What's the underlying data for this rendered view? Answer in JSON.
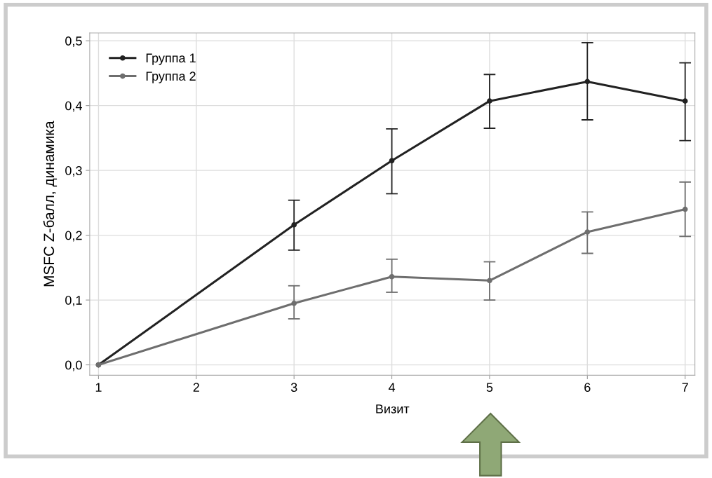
{
  "chart_data": {
    "type": "line",
    "xlabel": "Визит",
    "ylabel": "MSFC Z-балл, динамика",
    "x": [
      1,
      3,
      4,
      5,
      6,
      7
    ],
    "series": [
      {
        "name": "Группа 1",
        "color": "#222222",
        "values": [
          0.0,
          0.216,
          0.315,
          0.407,
          0.437,
          0.407
        ],
        "errors": [
          null,
          [
            0.177,
            0.254
          ],
          [
            0.264,
            0.364
          ],
          [
            0.365,
            0.448
          ],
          [
            0.378,
            0.497
          ],
          [
            0.346,
            0.466
          ]
        ]
      },
      {
        "name": "Группа 2",
        "color": "#6e6e6e",
        "values": [
          0.0,
          0.095,
          0.136,
          0.13,
          0.205,
          0.24
        ],
        "errors": [
          null,
          [
            0.071,
            0.122
          ],
          [
            0.112,
            0.163
          ],
          [
            0.1,
            0.159
          ],
          [
            0.172,
            0.236
          ],
          [
            0.198,
            0.282
          ]
        ]
      }
    ],
    "xlim": [
      0.91,
      7.1
    ],
    "xticks": [
      1,
      2,
      3,
      4,
      5,
      6,
      7
    ],
    "ylim": [
      -0.016,
      0.512
    ],
    "yticks": [
      {
        "value": 0.0,
        "label": "0,0"
      },
      {
        "value": 0.1,
        "label": "0,1"
      },
      {
        "value": 0.2,
        "label": "0,2"
      },
      {
        "value": 0.3,
        "label": "0,3"
      },
      {
        "value": 0.4,
        "label": "0,4"
      },
      {
        "value": 0.5,
        "label": "0,5"
      }
    ],
    "grid": true,
    "legend": "top left",
    "marker": "circle",
    "line_style": "solid"
  }
}
